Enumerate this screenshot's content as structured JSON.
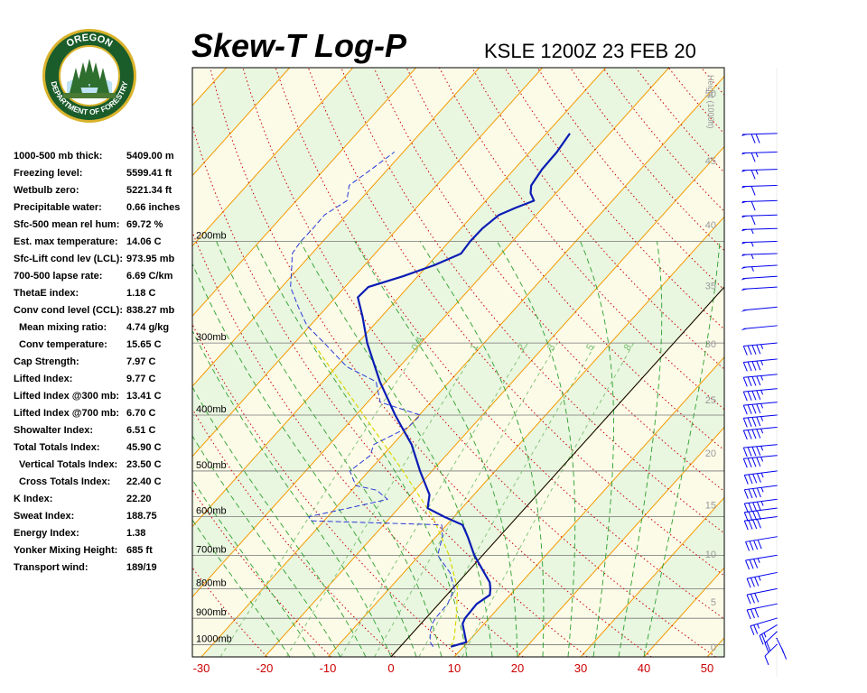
{
  "header": {
    "title": "Skew-T Log-P",
    "subtitle": "KSLE 1200Z 23 FEB 20"
  },
  "logo": {
    "top_text": "OREGON",
    "bottom_text": "DEPARTMENT OF FORESTRY",
    "colors": {
      "ring": "#1a5c2a",
      "gold": "#d9b22b",
      "tree": "#2e6e2e"
    }
  },
  "indices": [
    {
      "label": "1000-500 mb thick:",
      "value": "5409.00 m",
      "sub": false
    },
    {
      "label": "Freezing level:",
      "value": "5599.41 ft",
      "sub": false
    },
    {
      "label": "Wetbulb zero:",
      "value": "5221.34 ft",
      "sub": false
    },
    {
      "label": "Precipitable water:",
      "value": "0.66 inches",
      "sub": false
    },
    {
      "label": "Sfc-500 mean rel hum:",
      "value": "69.72 %",
      "sub": false
    },
    {
      "label": "Est. max temperature:",
      "value": "14.06 C",
      "sub": false
    },
    {
      "label": "Sfc-Lift cond lev (LCL):",
      "value": "973.95 mb",
      "sub": false
    },
    {
      "label": "700-500 lapse rate:",
      "value": "6.69 C/km",
      "sub": false
    },
    {
      "label": "ThetaE index:",
      "value": "1.18 C",
      "sub": false
    },
    {
      "label": "Conv cond level (CCL):",
      "value": "838.27 mb",
      "sub": false
    },
    {
      "label": "Mean mixing ratio:",
      "value": "4.74 g/kg",
      "sub": true
    },
    {
      "label": "Conv temperature:",
      "value": "15.65 C",
      "sub": true
    },
    {
      "label": "Cap Strength:",
      "value": "7.97 C",
      "sub": false
    },
    {
      "label": "Lifted Index:",
      "value": "9.77 C",
      "sub": false
    },
    {
      "label": "Lifted Index @300 mb:",
      "value": "13.41 C",
      "sub": false
    },
    {
      "label": "Lifted Index @700 mb:",
      "value": "6.70 C",
      "sub": false
    },
    {
      "label": "Showalter Index:",
      "value": "6.51 C",
      "sub": false
    },
    {
      "label": "Total Totals Index:",
      "value": "45.90 C",
      "sub": false
    },
    {
      "label": "Vertical Totals Index:",
      "value": "23.50 C",
      "sub": true
    },
    {
      "label": "Cross Totals Index:",
      "value": "22.40 C",
      "sub": true
    },
    {
      "label": "K Index:",
      "value": "22.20",
      "sub": false
    },
    {
      "label": "Sweat Index:",
      "value": "188.75",
      "sub": false
    },
    {
      "label": "Energy Index:",
      "value": "1.38",
      "sub": false
    },
    {
      "label": "Yonker Mixing Height:",
      "value": "685 ft",
      "sub": false
    },
    {
      "label": "Transport wind:",
      "value": "189/19",
      "sub": false
    }
  ],
  "chart_data": {
    "type": "line",
    "chart_kind": "skew-t log-p",
    "y_scale": "log pressure",
    "x_axis": {
      "unit": "C",
      "range": [
        -30,
        50
      ],
      "ticks": [
        -30,
        -20,
        -10,
        0,
        10,
        20,
        30,
        40,
        50
      ],
      "tick_labels": [
        "-30",
        "-20",
        "-10",
        "0",
        "10",
        "20",
        "30",
        "40",
        "50"
      ]
    },
    "pressure_axis": {
      "range": [
        1050,
        100
      ],
      "levels": [
        1000,
        900,
        800,
        700,
        600,
        500,
        400,
        300,
        200
      ],
      "labels": [
        "1000mb",
        "900mb",
        "800mb",
        "700mb",
        "600mb",
        "500mb",
        "400mb",
        "300mb",
        "200mb"
      ]
    },
    "height_axis": {
      "label": "Height (1000ft)",
      "ticks": [
        0,
        5,
        10,
        15,
        20,
        25,
        30,
        35,
        40,
        45,
        50
      ],
      "tick_labels": [
        "0",
        "5",
        "10",
        "15",
        "20",
        "25",
        "30",
        "35",
        "40",
        "45",
        "50"
      ]
    },
    "mixing_ratio_labels": [
      "0.4",
      "1",
      "2",
      "3",
      "5",
      "8"
    ],
    "mixing_ratio_values": [
      0.4,
      1,
      2,
      3,
      5,
      8
    ],
    "temperature": {
      "p": [
        1008,
        990,
        950,
        920,
        900,
        850,
        820,
        800,
        780,
        700,
        650,
        620,
        600,
        580,
        550,
        500,
        450,
        420,
        400,
        350,
        300,
        270,
        250,
        240,
        230,
        220,
        210,
        200,
        190,
        180,
        175,
        170,
        165,
        160,
        150,
        140,
        130
      ],
      "t": [
        8,
        9.8,
        8,
        6.6,
        6.2,
        6,
        6.8,
        6,
        5,
        -1.3,
        -5,
        -7.5,
        -11.6,
        -15.4,
        -17,
        -21.9,
        -27,
        -31,
        -33.8,
        -41,
        -48.5,
        -53,
        -56.5,
        -56.3,
        -52.4,
        -49,
        -46.4,
        -46.7,
        -46.6,
        -45.9,
        -44.3,
        -42.4,
        -44,
        -45,
        -45.6,
        -45.7,
        -46.3
      ]
    },
    "dewpoint": {
      "p": [
        1008,
        990,
        950,
        920,
        900,
        850,
        800,
        750,
        700,
        650,
        620,
        610,
        600,
        580,
        560,
        540,
        530,
        500,
        470,
        450,
        420,
        400,
        380,
        350,
        330,
        300,
        280,
        260,
        240,
        220,
        210,
        200,
        190,
        180,
        170,
        160,
        150,
        140
      ],
      "td": [
        5.2,
        4.1,
        2.6,
        1.8,
        1.5,
        1.4,
        0.3,
        -2.7,
        -7.1,
        -9,
        -10.8,
        -32,
        -33,
        -28,
        -23,
        -26,
        -30,
        -33,
        -32,
        -33,
        -30,
        -29.8,
        -38,
        -41.6,
        -48.3,
        -55.3,
        -60.5,
        -64.5,
        -68.6,
        -71.5,
        -73.1,
        -73.5,
        -73.4,
        -73.5,
        -72,
        -73.8,
        -72.6,
        -71.4
      ]
    },
    "parcel": {
      "p": [
        1008,
        974,
        900,
        800,
        700,
        600,
        500,
        400,
        300
      ],
      "t": [
        8,
        7.3,
        4.8,
        0.8,
        -5.3,
        -13.4,
        -24.6,
        -38.8,
        -57.1
      ]
    },
    "colors": {
      "temperature": "#0a1cb4",
      "dewpoint": "#2a3ad6",
      "parcel": "#d8d800",
      "isotherm": "#f59a00",
      "dry_adiabat": "#cc0000",
      "moist_adiabat": "#2ca02c",
      "mixing_ratio": "#7ac06f",
      "isobar": "#777777",
      "zero_isotherm": "#000000",
      "barb": "#0000ee",
      "tick_label": "#cc0000"
    },
    "wind_barbs": {
      "p": [
        1000,
        975,
        950,
        925,
        900,
        850,
        800,
        750,
        700,
        650,
        600,
        580,
        560,
        530,
        500,
        470,
        450,
        420,
        400,
        380,
        360,
        340,
        320,
        300,
        280,
        260,
        240,
        230,
        220,
        210,
        200,
        190,
        180,
        170,
        160,
        150,
        140,
        130
      ],
      "dir": [
        200,
        170,
        200,
        210,
        230,
        240,
        240,
        240,
        245,
        245,
        250,
        250,
        250,
        250,
        250,
        255,
        255,
        255,
        255,
        255,
        255,
        255,
        255,
        255,
        255,
        255,
        260,
        260,
        260,
        265,
        265,
        265,
        265,
        265,
        265,
        265,
        265,
        265
      ],
      "speed": [
        10,
        15,
        20,
        25,
        25,
        30,
        30,
        35,
        35,
        40,
        40,
        40,
        45,
        45,
        45,
        45,
        45,
        45,
        45,
        45,
        45,
        45,
        45,
        45,
        50,
        50,
        50,
        50,
        55,
        55,
        55,
        55,
        60,
        60,
        60,
        65,
        65,
        70
      ]
    }
  }
}
